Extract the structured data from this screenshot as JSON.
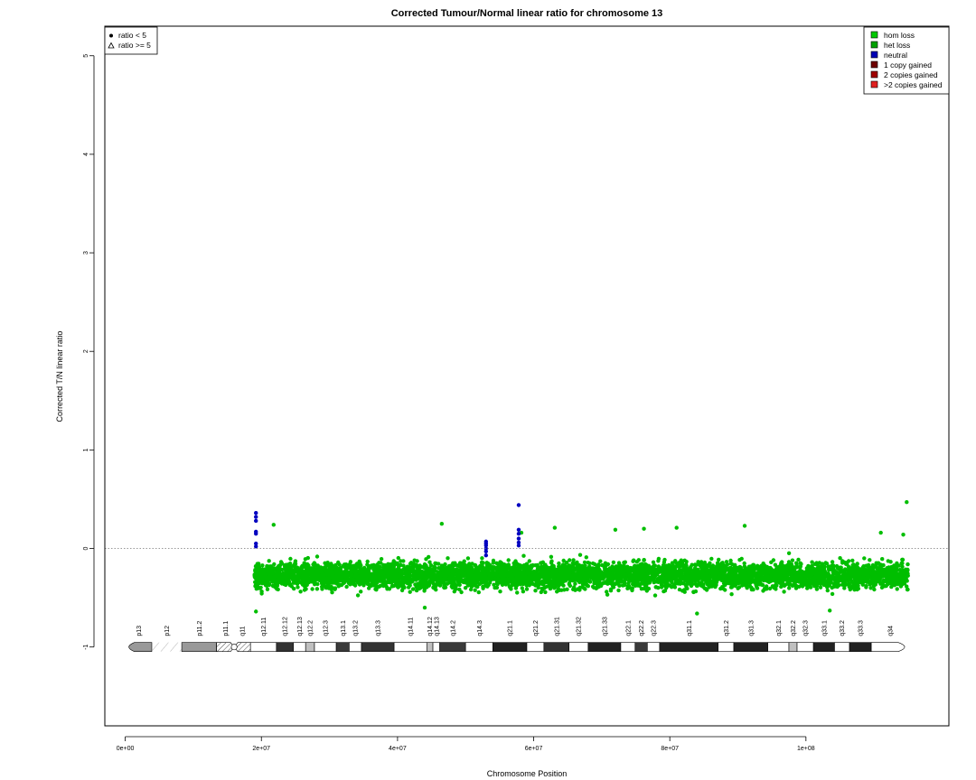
{
  "chart_data": {
    "type": "scatter",
    "title": "Corrected Tumour/Normal linear ratio for chromosome  13",
    "xlabel": "Chromosome Position",
    "ylabel": "Corrected T/N linear ratio",
    "xlim": [
      -3000000,
      121000000
    ],
    "ylim": [
      -1.8,
      5.3
    ],
    "x_ticks": [
      0,
      20000000,
      40000000,
      60000000,
      80000000,
      100000000
    ],
    "x_tick_labels": [
      "0e+00",
      "2e+07",
      "4e+07",
      "6e+07",
      "8e+07",
      "1e+08"
    ],
    "y_ticks": [
      -1,
      0,
      1,
      2,
      3,
      4,
      5
    ],
    "y_tick_labels": [
      "-1",
      "0",
      "1",
      "2",
      "3",
      "4",
      "5"
    ],
    "reference_line": {
      "y": 0,
      "style": "dotted",
      "color": "#777777"
    },
    "shape_legend": {
      "placement": "top-left",
      "items": [
        {
          "label": "ratio < 5",
          "symbol": "filled-circle"
        },
        {
          "label": "ratio >= 5",
          "symbol": "open-triangle"
        }
      ]
    },
    "color_legend": {
      "placement": "top-right",
      "items": [
        {
          "label": "hom loss",
          "color": "#00c800"
        },
        {
          "label": "het loss",
          "color": "#00a000"
        },
        {
          "label": "neutral",
          "color": "#0000b4"
        },
        {
          "label": "1 copy gained",
          "color": "#6e0000"
        },
        {
          "label": "2 copies gained",
          "color": "#a00000"
        },
        {
          "label": ">2 copies gained",
          "color": "#e02020"
        }
      ]
    },
    "series": [
      {
        "name": "het loss",
        "color": "#00be00",
        "x_range": [
          19000000,
          115000000
        ],
        "y_typical_range": [
          -0.55,
          0.05
        ],
        "y_center": -0.27,
        "outliers": [
          [
            19200000,
            -0.64
          ],
          [
            21800000,
            0.24
          ],
          [
            44000000,
            -0.6
          ],
          [
            46500000,
            0.25
          ],
          [
            58200000,
            0.16
          ],
          [
            63100000,
            0.21
          ],
          [
            72000000,
            0.19
          ],
          [
            76200000,
            0.2
          ],
          [
            81000000,
            0.21
          ],
          [
            84000000,
            -0.66
          ],
          [
            91000000,
            0.23
          ],
          [
            103500000,
            -0.63
          ],
          [
            111000000,
            0.16
          ],
          [
            114300000,
            0.14
          ],
          [
            114800000,
            0.47
          ]
        ]
      },
      {
        "name": "neutral",
        "color": "#0000c0",
        "points": [
          [
            19200000,
            0.36
          ],
          [
            19200000,
            0.32
          ],
          [
            19200000,
            0.28
          ],
          [
            19200000,
            0.17
          ],
          [
            19200000,
            0.15
          ],
          [
            19200000,
            0.05
          ],
          [
            19200000,
            0.02
          ],
          [
            53000000,
            0.07
          ],
          [
            53000000,
            0.05
          ],
          [
            53000000,
            0.03
          ],
          [
            53000000,
            0.0
          ],
          [
            53000000,
            -0.03
          ],
          [
            53000000,
            -0.07
          ],
          [
            57800000,
            0.44
          ],
          [
            57800000,
            0.19
          ],
          [
            57800000,
            0.15
          ],
          [
            57800000,
            0.1
          ],
          [
            57800000,
            0.06
          ],
          [
            57800000,
            0.03
          ]
        ]
      }
    ],
    "ideogram": {
      "y": -1,
      "bands": [
        {
          "name": "p13",
          "start": 0,
          "end": 3900000,
          "stain": "gvar"
        },
        {
          "name": "p12",
          "start": 3900000,
          "end": 8300000,
          "stain": "stalk"
        },
        {
          "name": "p11.2",
          "start": 8300000,
          "end": 13400000,
          "stain": "gvar"
        },
        {
          "name": "p11.1",
          "start": 13400000,
          "end": 16000000,
          "stain": "acen"
        },
        {
          "name": "q11",
          "start": 16000000,
          "end": 18400000,
          "stain": "acen"
        },
        {
          "name": "q12.11",
          "start": 18400000,
          "end": 22200000,
          "stain": "gneg"
        },
        {
          "name": "q12.12",
          "start": 22200000,
          "end": 24700000,
          "stain": "gpos75"
        },
        {
          "name": "q12.13",
          "start": 24700000,
          "end": 26500000,
          "stain": "gneg"
        },
        {
          "name": "q12.2",
          "start": 26500000,
          "end": 27800000,
          "stain": "gpos25"
        },
        {
          "name": "q12.3",
          "start": 27800000,
          "end": 31000000,
          "stain": "gneg"
        },
        {
          "name": "q13.1",
          "start": 31000000,
          "end": 32900000,
          "stain": "gpos50"
        },
        {
          "name": "q13.2",
          "start": 32900000,
          "end": 34700000,
          "stain": "gneg"
        },
        {
          "name": "q13.3",
          "start": 34700000,
          "end": 39500000,
          "stain": "gpos75"
        },
        {
          "name": "q14.11",
          "start": 39500000,
          "end": 44300000,
          "stain": "gneg"
        },
        {
          "name": "q14.12",
          "start": 44300000,
          "end": 45200000,
          "stain": "gpos25"
        },
        {
          "name": "q14.13",
          "start": 45200000,
          "end": 46200000,
          "stain": "gneg"
        },
        {
          "name": "q14.2",
          "start": 46200000,
          "end": 50000000,
          "stain": "gpos50"
        },
        {
          "name": "q14.3",
          "start": 50000000,
          "end": 54000000,
          "stain": "gneg"
        },
        {
          "name": "q21.1",
          "start": 54000000,
          "end": 59000000,
          "stain": "gpos100"
        },
        {
          "name": "q21.2",
          "start": 59000000,
          "end": 61500000,
          "stain": "gneg"
        },
        {
          "name": "q21.31",
          "start": 61500000,
          "end": 65200000,
          "stain": "gpos75"
        },
        {
          "name": "q21.32",
          "start": 65200000,
          "end": 68000000,
          "stain": "gneg"
        },
        {
          "name": "q21.33",
          "start": 68000000,
          "end": 72800000,
          "stain": "gpos100"
        },
        {
          "name": "q22.1",
          "start": 72800000,
          "end": 74900000,
          "stain": "gneg"
        },
        {
          "name": "q22.2",
          "start": 74900000,
          "end": 76700000,
          "stain": "gpos50"
        },
        {
          "name": "q22.3",
          "start": 76700000,
          "end": 78500000,
          "stain": "gneg"
        },
        {
          "name": "q31.1",
          "start": 78500000,
          "end": 87100000,
          "stain": "gpos100"
        },
        {
          "name": "q31.2",
          "start": 87100000,
          "end": 89400000,
          "stain": "gneg"
        },
        {
          "name": "q31.3",
          "start": 89400000,
          "end": 94400000,
          "stain": "gpos100"
        },
        {
          "name": "q32.1",
          "start": 94400000,
          "end": 97500000,
          "stain": "gneg"
        },
        {
          "name": "q32.2",
          "start": 97500000,
          "end": 98700000,
          "stain": "gpos25"
        },
        {
          "name": "q32.3",
          "start": 98700000,
          "end": 101100000,
          "stain": "gneg"
        },
        {
          "name": "q33.1",
          "start": 101100000,
          "end": 104200000,
          "stain": "gpos100"
        },
        {
          "name": "q33.2",
          "start": 104200000,
          "end": 106400000,
          "stain": "gneg"
        },
        {
          "name": "q33.3",
          "start": 106400000,
          "end": 109600000,
          "stain": "gpos100"
        },
        {
          "name": "q34",
          "start": 109600000,
          "end": 115169878,
          "stain": "gneg"
        }
      ]
    }
  }
}
